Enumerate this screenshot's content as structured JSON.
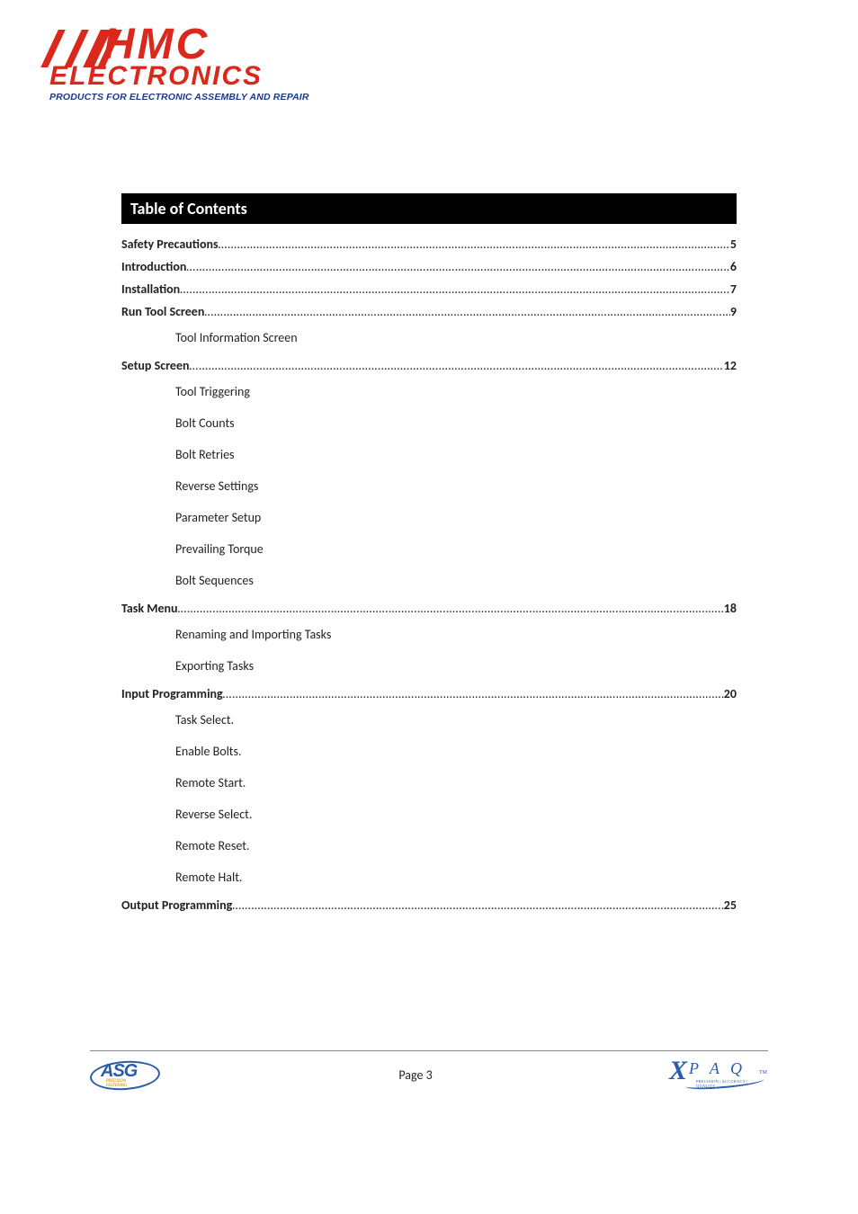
{
  "header_logo": {
    "main_text": "HMC",
    "sub_text": "ELECTRONICS",
    "tagline": "PRODUCTS FOR ELECTRONIC ASSEMBLY AND REPAIR",
    "primary_color": "#d9291c",
    "tagline_color": "#1a3a8a"
  },
  "toc": {
    "title": "Table of Contents",
    "entries": [
      {
        "label": "Safety Precautions",
        "page": "5",
        "subs": []
      },
      {
        "label": "Introduction",
        "page": "6",
        "subs": []
      },
      {
        "label": "Installation",
        "page": "7",
        "subs": []
      },
      {
        "label": "Run Tool Screen",
        "page": "9",
        "subs": [
          "Tool Information Screen"
        ]
      },
      {
        "label": "Setup Screen",
        "page": "12",
        "subs": [
          "Tool Triggering",
          "Bolt Counts",
          "Bolt Retries",
          "Reverse Settings",
          "Parameter Setup",
          "Prevailing Torque",
          "Bolt Sequences"
        ]
      },
      {
        "label": "Task Menu",
        "page": "18",
        "subs": [
          "Renaming and Importing Tasks",
          "Exporting Tasks"
        ]
      },
      {
        "label": "Input Programming",
        "page": "20",
        "subs": [
          "Task Select.",
          "Enable Bolts.",
          "Remote Start.",
          "Reverse Select.",
          "Remote Reset.",
          "Remote Halt."
        ]
      },
      {
        "label": "Output Programming",
        "page": "25",
        "subs": []
      }
    ]
  },
  "footer": {
    "left_logo": {
      "text": "ASG",
      "sub1": "PRECISION",
      "sub2": "FASTENING",
      "color": "#2a5ca8"
    },
    "center": "Page 3",
    "right_logo": {
      "x": "X",
      "rest": "P A Q",
      "tm": "TM",
      "sub": "PRECISION | ACCURACY | QUALITY",
      "color": "#2a5ca8"
    }
  }
}
